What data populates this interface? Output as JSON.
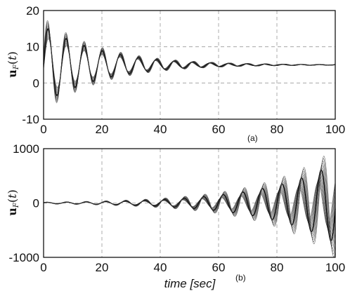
{
  "chart_data": [
    {
      "type": "line",
      "panel_label": "(a)",
      "ylabel": "u_F(t)",
      "xlabel": "",
      "xlim": [
        0,
        100
      ],
      "ylim": [
        -10,
        20
      ],
      "x_ticks": [
        "0",
        "20",
        "40",
        "60",
        "80",
        "100"
      ],
      "y_ticks": [
        "-10",
        "0",
        "10",
        "20"
      ],
      "grid": true,
      "series": [
        {
          "values_description": "damped oscillation ensemble",
          "offset": 5,
          "amplitude": 10.5,
          "decay_rate": 0.05,
          "period": 6.2,
          "end_value": 5
        }
      ]
    },
    {
      "type": "line",
      "panel_label": "(b)",
      "ylabel": "u_F(t)",
      "xlabel": "time [sec]",
      "xlim": [
        0,
        100
      ],
      "ylim": [
        -1000,
        1000
      ],
      "x_ticks": [
        "0",
        "20",
        "40",
        "60",
        "80",
        "100"
      ],
      "y_ticks": [
        "-1000",
        "0",
        "1000"
      ],
      "grid": true,
      "series": [
        {
          "values_description": "growing oscillation ensemble",
          "offset": 0,
          "amplitude": 12,
          "growth_rate": 0.041,
          "period": 6.7,
          "end_value": -850
        }
      ]
    }
  ]
}
